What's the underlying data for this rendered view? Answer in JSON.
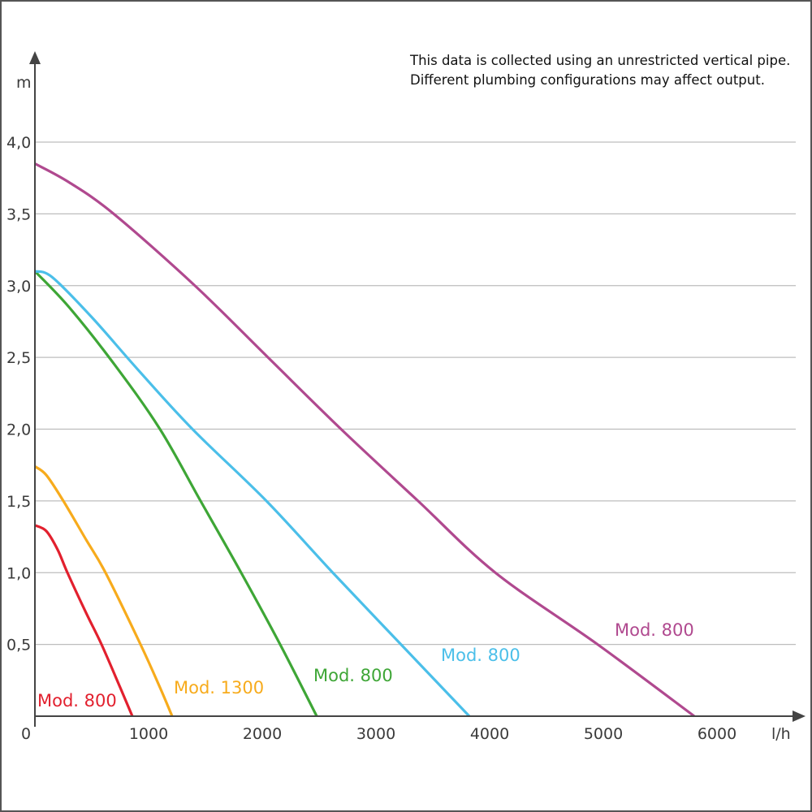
{
  "chart_data": {
    "type": "line",
    "title": "",
    "note_lines": [
      "This data is collected using an unrestricted vertical pipe.",
      "Different plumbing configurations may affect output."
    ],
    "xlabel": "l/h",
    "ylabel": "m",
    "xlim": [
      0,
      6600
    ],
    "ylim": [
      0,
      4.4
    ],
    "grid": true,
    "x_ticks": [
      0,
      1000,
      2000,
      3000,
      4000,
      5000,
      6000
    ],
    "x_tick_labels": [
      "0",
      "1000",
      "2000",
      "3000",
      "4000",
      "5000",
      "6000"
    ],
    "y_ticks": [
      0.5,
      1.0,
      1.5,
      2.0,
      2.5,
      3.0,
      3.5,
      4.0
    ],
    "y_tick_labels": [
      "0,5",
      "1,0",
      "1,5",
      "2,0",
      "2,5",
      "3,0",
      "3,5",
      "4,0"
    ],
    "series": [
      {
        "name": "Mod. 800",
        "color": "#e2202e",
        "points": [
          [
            0,
            1.33
          ],
          [
            100,
            1.29
          ],
          [
            200,
            1.16
          ],
          [
            286,
            1.0
          ],
          [
            450,
            0.72
          ],
          [
            586,
            0.5
          ],
          [
            750,
            0.2
          ],
          [
            857,
            0
          ]
        ]
      },
      {
        "name": "Mod. 1300",
        "color": "#f7ab1c",
        "points": [
          [
            0,
            1.74
          ],
          [
            100,
            1.68
          ],
          [
            250,
            1.5
          ],
          [
            450,
            1.23
          ],
          [
            621,
            1.0
          ],
          [
            929,
            0.5
          ],
          [
            1100,
            0.2
          ],
          [
            1207,
            0
          ]
        ]
      },
      {
        "name": "Mod. 800",
        "color": "#3ea636",
        "points": [
          [
            0,
            3.1
          ],
          [
            300,
            2.85
          ],
          [
            700,
            2.45
          ],
          [
            1100,
            2.0
          ],
          [
            1457,
            1.5
          ],
          [
            1814,
            1.0
          ],
          [
            2157,
            0.5
          ],
          [
            2479,
            0
          ]
        ]
      },
      {
        "name": "Mod. 800",
        "color": "#4bbfe9",
        "points": [
          [
            0,
            3.1
          ],
          [
            150,
            3.06
          ],
          [
            500,
            2.78
          ],
          [
            900,
            2.42
          ],
          [
            1386,
            2.0
          ],
          [
            2036,
            1.5
          ],
          [
            2620,
            1.0
          ],
          [
            3220,
            0.5
          ],
          [
            3821,
            0
          ]
        ]
      },
      {
        "name": "Mod. 800",
        "color": "#b0498f",
        "points": [
          [
            0,
            3.85
          ],
          [
            300,
            3.72
          ],
          [
            693,
            3.5
          ],
          [
            1407,
            3.0
          ],
          [
            2050,
            2.5
          ],
          [
            2693,
            2.0
          ],
          [
            3370,
            1.5
          ],
          [
            4050,
            1.0
          ],
          [
            4950,
            0.5
          ],
          [
            5800,
            0
          ]
        ]
      }
    ]
  }
}
